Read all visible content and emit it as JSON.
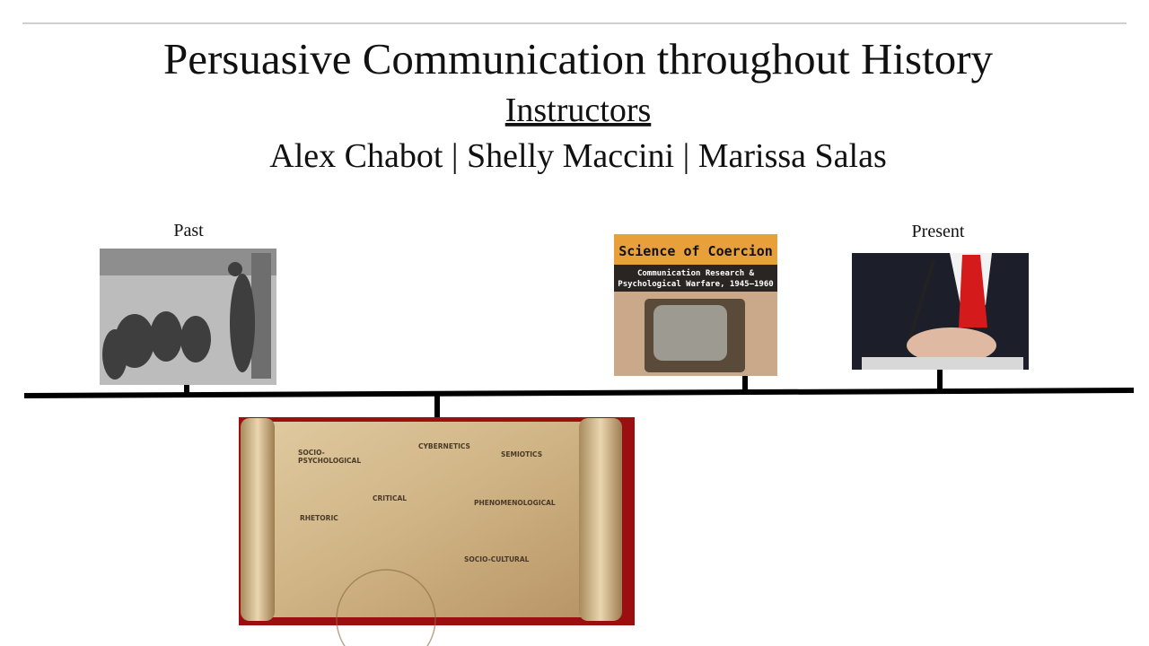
{
  "header": {
    "title": "Persuasive Communication throughout History",
    "subtitle": "Instructors",
    "instructors": "Alex Chabot | Shelly Maccini | Marissa Salas"
  },
  "timeline": {
    "start_label": "Past",
    "end_label": "Present"
  },
  "book_cover": {
    "title": "Science of Coercion",
    "subtitle_line1": "Communication Research &",
    "subtitle_line2": "Psychological Warfare, 1945–1960"
  },
  "scroll": {
    "headings": [
      "SOCIO-",
      "PSYCHOLOGICAL",
      "CYBERNETICS",
      "SEMIOTICS",
      "CRITICAL",
      "PHENOMENOLOGICAL",
      "RHETORIC",
      "SOCIO-CULTURAL"
    ]
  }
}
